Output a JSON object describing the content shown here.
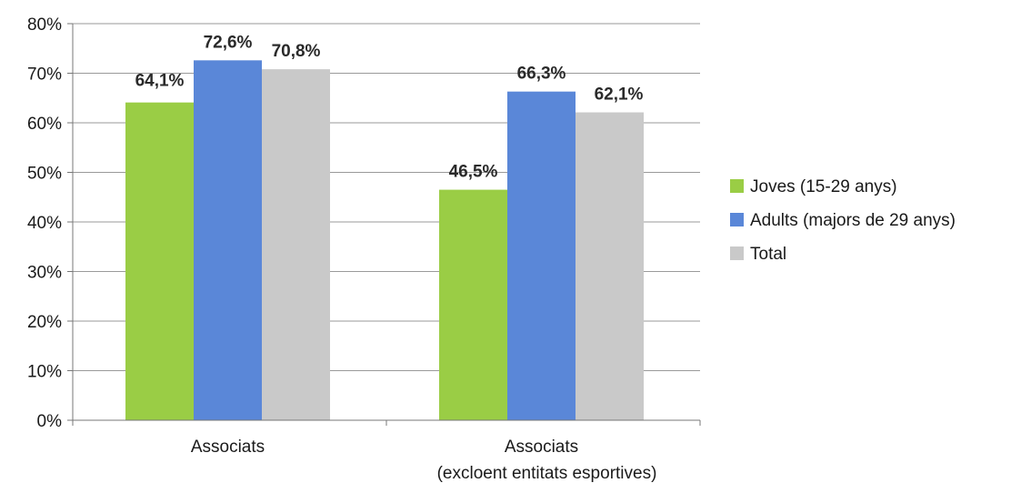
{
  "chart_data": {
    "type": "bar",
    "categories": [
      "Associats",
      "Associats\n(excloent entitats esportives)"
    ],
    "series": [
      {
        "name": "Joves (15-29 anys)",
        "values": [
          64.1,
          46.5
        ],
        "labels": [
          "64,1%",
          "46,5%"
        ],
        "color": "#9acd45"
      },
      {
        "name": "Adults (majors de 29 anys)",
        "values": [
          72.6,
          66.3
        ],
        "labels": [
          "72,6%",
          "66,3%"
        ],
        "color": "#5a87d8"
      },
      {
        "name": "Total",
        "values": [
          70.8,
          62.1
        ],
        "labels": [
          "70,8%",
          "62,1%"
        ],
        "color": "#c9c9c9"
      }
    ],
    "ylim": [
      0,
      80
    ],
    "yticks": [
      "0%",
      "10%",
      "20%",
      "30%",
      "40%",
      "50%",
      "60%",
      "70%",
      "80%"
    ],
    "grid": true,
    "legend_position": "right",
    "title": "",
    "xlabel": "",
    "ylabel": ""
  }
}
